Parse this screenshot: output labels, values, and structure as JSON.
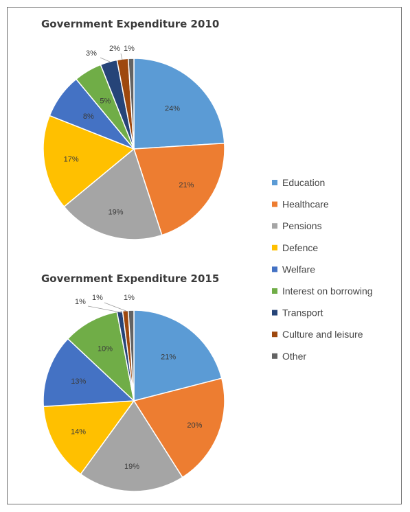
{
  "chart_data": [
    {
      "type": "pie",
      "title": "Government Expenditure 2010",
      "categories": [
        "Education",
        "Healthcare",
        "Pensions",
        "Defence",
        "Welfare",
        "Interest on borrowing",
        "Transport",
        "Culture and leisure",
        "Other"
      ],
      "values": [
        24,
        21,
        19,
        17,
        8,
        5,
        3,
        2,
        1
      ],
      "labels": [
        "24%",
        "21%",
        "19%",
        "17%",
        "8%",
        "5%",
        "3%",
        "2%",
        "1%"
      ]
    },
    {
      "type": "pie",
      "title": "Government Expenditure 2015",
      "categories": [
        "Education",
        "Healthcare",
        "Pensions",
        "Defence",
        "Welfare",
        "Interest on borrowing",
        "Transport",
        "Culture and leisure",
        "Other"
      ],
      "values": [
        21,
        20,
        19,
        14,
        13,
        10,
        1,
        1,
        1
      ],
      "labels": [
        "21%",
        "20%",
        "19%",
        "14%",
        "13%",
        "10%",
        "1%",
        "1%",
        "1%"
      ]
    }
  ],
  "legend": {
    "placement": "right",
    "items": [
      "Education",
      "Healthcare",
      "Pensions",
      "Defence",
      "Welfare",
      "Interest on borrowing",
      "Transport",
      "Culture and leisure",
      "Other"
    ]
  },
  "colors": [
    "#5b9bd5",
    "#ed7d31",
    "#a5a5a5",
    "#ffc000",
    "#4472c4",
    "#70ad47",
    "#264478",
    "#9e480e",
    "#636363"
  ]
}
